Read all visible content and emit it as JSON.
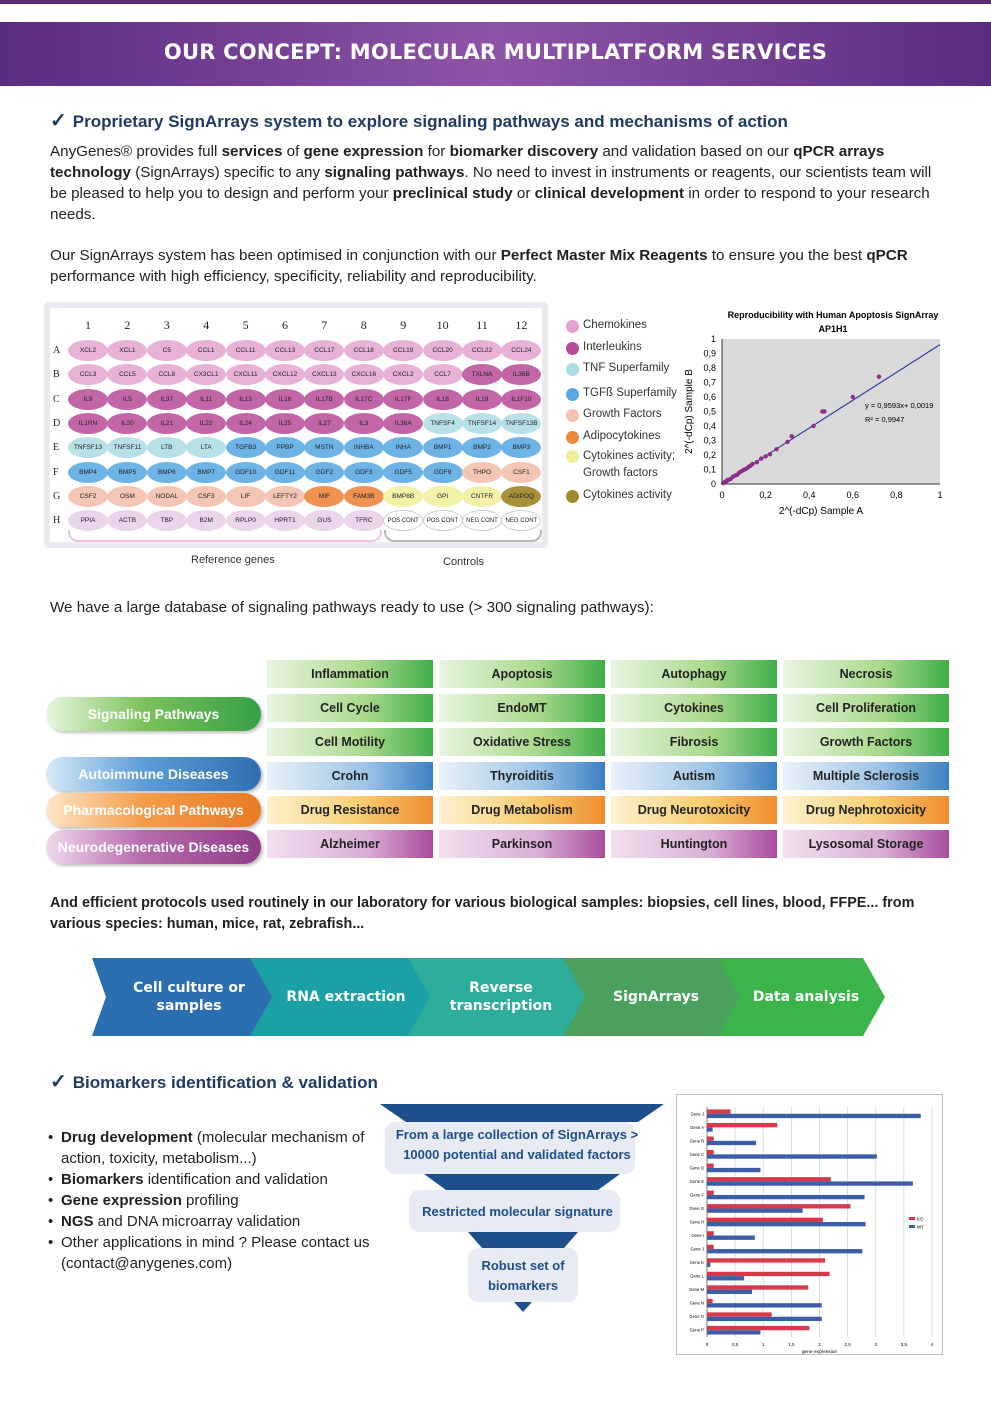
{
  "banner": {
    "title": "OUR CONCEPT: MOLECULAR MULTIPLATFORM SERVICES"
  },
  "section1": {
    "title": "Proprietary SignArrays system to explore signaling pathways and mechanisms of action",
    "para1": [
      {
        "t": "AnyGenes® provides full "
      },
      {
        "b": "services"
      },
      {
        "t": " of "
      },
      {
        "b": "gene expression"
      },
      {
        "t": " for "
      },
      {
        "b": "biomarker discovery"
      },
      {
        "t": " and validation based on our "
      },
      {
        "b": "qPCR arrays technology"
      },
      {
        "t": " (SignArrays) specific to any "
      },
      {
        "b": "signaling pathways"
      },
      {
        "t": ". No need to invest in instruments or reagents, our scientists team will be pleased to help you to design and perform your "
      },
      {
        "b": "preclinical study"
      },
      {
        "t": " or "
      },
      {
        "b": "clinical development"
      },
      {
        "t": " in order to respond to your research needs."
      }
    ],
    "para2": [
      {
        "t": "Our SignArrays system has been optimised in conjunction with our "
      },
      {
        "b": "Perfect Master Mix Reagents"
      },
      {
        "t": " to ensure you the best "
      },
      {
        "b": "qPCR"
      },
      {
        "t": " performance with high efficiency, specificity, reliability and reproducibility."
      }
    ]
  },
  "plate": {
    "columns": [
      "1",
      "2",
      "3",
      "4",
      "5",
      "6",
      "7",
      "8",
      "9",
      "10",
      "11",
      "12"
    ],
    "rows": [
      "A",
      "B",
      "C",
      "D",
      "E",
      "F",
      "G",
      "H"
    ],
    "wells": [
      [
        "XCL2",
        "XCL1",
        "C5",
        "CCL1",
        "CCL11",
        "CCL13",
        "CCL17",
        "CCL18",
        "CCL19",
        "CCL20",
        "CCL22",
        "CCL24"
      ],
      [
        "CCL3",
        "CCL5",
        "CCL8",
        "CX3CL1",
        "CXCL11",
        "CXCL12",
        "CXCL13",
        "CXCL16",
        "CXCL2",
        "CCL7",
        "TXLNA",
        "IL36B"
      ],
      [
        "IL9",
        "IL5",
        "IL37",
        "IL11",
        "IL13",
        "IL16",
        "IL17B",
        "IL17C",
        "IL17F",
        "IL18",
        "IL19",
        "IL1F10"
      ],
      [
        "IL1RN",
        "IL20",
        "IL21",
        "IL22",
        "IL24",
        "IL25",
        "IL27",
        "IL3",
        "IL36A",
        "TNFSF4",
        "TNFSF14",
        "TNFSF13B"
      ],
      [
        "TNFSF13",
        "TNFSF11",
        "LTB",
        "LTA",
        "TGFB3",
        "PPBP",
        "MSTN",
        "INHBA",
        "INHA",
        "BMP1",
        "BMP2",
        "BMP3"
      ],
      [
        "BMP4",
        "BMP5",
        "BMP6",
        "BMP7",
        "GDF10",
        "GDF11",
        "GDF2",
        "GDF3",
        "GDF5",
        "GDF9",
        "THPO",
        "CSF1"
      ],
      [
        "CSF2",
        "OSM",
        "NODAL",
        "CSF3",
        "LIF",
        "LEFTY2",
        "MIF",
        "FAM3B",
        "BMP8B",
        "GPI",
        "CNTFR",
        "ADIPOQ"
      ],
      [
        "PPIA",
        "ACTB",
        "TBP",
        "B2M",
        "RPLP0",
        "HPRT1",
        "GUS",
        "TFRC",
        "POS CONT",
        "POS CONT",
        "NEG CONT",
        "NEG CONT"
      ]
    ],
    "well_categories": [
      [
        "chemo",
        "chemo",
        "chemo",
        "chemo",
        "chemo",
        "chemo",
        "chemo",
        "chemo",
        "chemo",
        "chemo",
        "chemo",
        "chemo"
      ],
      [
        "chemo",
        "chemo",
        "chemo",
        "chemo",
        "chemo",
        "chemo",
        "chemo",
        "chemo",
        "chemo",
        "chemo",
        "inter",
        "inter"
      ],
      [
        "inter",
        "inter",
        "inter",
        "inter",
        "inter",
        "inter",
        "inter",
        "inter",
        "inter",
        "inter",
        "inter",
        "inter"
      ],
      [
        "inter",
        "inter",
        "inter",
        "inter",
        "inter",
        "inter",
        "inter",
        "inter",
        "inter",
        "tnf",
        "tnf",
        "tnf"
      ],
      [
        "tnf",
        "tnf",
        "tnf",
        "tnf",
        "tgf",
        "tgf",
        "tgf",
        "tgf",
        "tgf",
        "tgf",
        "tgf",
        "tgf"
      ],
      [
        "tgf",
        "tgf",
        "tgf",
        "tgf",
        "tgf",
        "tgf",
        "tgf",
        "tgf",
        "tgf",
        "tgf",
        "growth",
        "growth"
      ],
      [
        "growth",
        "growth",
        "growth",
        "growth",
        "growth",
        "growth",
        "adipo",
        "adipo",
        "cytoact",
        "cytoact",
        "cytoact",
        "cytoactivity"
      ],
      [
        "ref",
        "ref",
        "ref",
        "ref",
        "ref",
        "ref",
        "ref",
        "ref",
        "ctrl",
        "ctrl",
        "ctrl",
        "ctrl"
      ]
    ],
    "reference_label": "Reference genes",
    "controls_label": "Controls"
  },
  "legend": [
    {
      "label": "Chemokines",
      "color": "#e3a2cf"
    },
    {
      "label": "Interleukins",
      "color": "#b94b9b"
    },
    {
      "label": "TNF Superfamily",
      "color": "#a9dce3"
    },
    {
      "label": "TGFß Superfamily",
      "color": "#5aa8e0"
    },
    {
      "label": "Growth Factors",
      "color": "#f4c0b0"
    },
    {
      "label": "Adipocytokines",
      "color": "#ee8a3e"
    },
    {
      "label": "Cytokines activity; Growth factors",
      "color": "#f0ee9a"
    },
    {
      "label": "Cytokines activity",
      "color": "#a08b2c"
    }
  ],
  "colors": {
    "chemo": "#e8b2d6",
    "inter": "#c266a8",
    "tnf": "#b7e0e7",
    "tgf": "#6db3e6",
    "growth": "#f5c6b6",
    "adipo": "#ef9150",
    "cytoact": "#f3f1a8",
    "cytoactivity": "#a8913a",
    "ref": "#ead5ea",
    "ctrl": "#ffffff"
  },
  "chart_data": [
    {
      "type": "scatter",
      "title": "Reproducibility with Human Apoptosis SignArray",
      "subtitle": "AP1H1",
      "xlabel": "2^(-dCp) Sample A",
      "ylabel": "2^(-dCp) Sample B",
      "xlim": [
        0,
        1
      ],
      "ylim": [
        0,
        1
      ],
      "x_ticks": [
        "0",
        "0,2",
        "0,4",
        "0,6",
        "0,8",
        "1"
      ],
      "y_ticks": [
        "0",
        "0,1",
        "0,2",
        "0,3",
        "0,4",
        "0,5",
        "0,6",
        "0,7",
        "0,8",
        "0,9",
        "1"
      ],
      "equation": "y = 0,9593x+ 0,0019",
      "r2": "R² = 0,9947",
      "points": [
        [
          0.005,
          0.006
        ],
        [
          0.01,
          0.011
        ],
        [
          0.015,
          0.013
        ],
        [
          0.02,
          0.02
        ],
        [
          0.025,
          0.027
        ],
        [
          0.03,
          0.028
        ],
        [
          0.04,
          0.036
        ],
        [
          0.05,
          0.05
        ],
        [
          0.06,
          0.058
        ],
        [
          0.07,
          0.064
        ],
        [
          0.08,
          0.08
        ],
        [
          0.09,
          0.088
        ],
        [
          0.1,
          0.098
        ],
        [
          0.11,
          0.104
        ],
        [
          0.12,
          0.115
        ],
        [
          0.13,
          0.126
        ],
        [
          0.14,
          0.138
        ],
        [
          0.16,
          0.15
        ],
        [
          0.18,
          0.175
        ],
        [
          0.2,
          0.19
        ],
        [
          0.22,
          0.205
        ],
        [
          0.25,
          0.24
        ],
        [
          0.3,
          0.29
        ],
        [
          0.32,
          0.33
        ],
        [
          0.42,
          0.4
        ],
        [
          0.46,
          0.5
        ],
        [
          0.47,
          0.5
        ],
        [
          0.6,
          0.6
        ],
        [
          0.72,
          0.74
        ]
      ],
      "fit": {
        "slope": 0.9593,
        "intercept": 0.0019
      }
    },
    {
      "type": "bar",
      "orientation": "horizontal",
      "xlabel": "gene expression",
      "x_ticks": [
        "0",
        "0,5",
        "1",
        "1,5",
        "2",
        "2,5",
        "3",
        "3,5",
        "4"
      ],
      "xlim": [
        0,
        4
      ],
      "categories": [
        "Gene J",
        "Gene A",
        "Gene B",
        "Gene C",
        "Gene D",
        "Gene E",
        "Gene F",
        "Gene G",
        "Gene H",
        "Gene I",
        "Gene J",
        "Gene K",
        "Gene L",
        "Gene M",
        "Gene N",
        "Gene O",
        "Gene P"
      ],
      "series": [
        {
          "name": "KO",
          "color": "#d7394a",
          "values": [
            0.42,
            1.25,
            0.12,
            0.12,
            0.12,
            2.2,
            0.12,
            2.55,
            2.06,
            0.12,
            0.12,
            2.1,
            2.18,
            1.8,
            0.1,
            1.15,
            1.82
          ]
        },
        {
          "name": "WT",
          "color": "#3d5da8",
          "values": [
            3.8,
            0.1,
            0.87,
            3.02,
            0.95,
            3.66,
            2.8,
            1.7,
            2.82,
            0.85,
            2.76,
            0.06,
            0.66,
            0.8,
            2.04,
            2.04,
            0.95
          ]
        }
      ]
    }
  ],
  "section_db": {
    "text": "We have a large database of signaling pathways ready to use (> 300 signaling pathways):"
  },
  "pathways": {
    "categories": [
      {
        "label": "Signaling Pathways",
        "style": "green"
      },
      {
        "label": "Autoimmune Diseases",
        "style": "blue"
      },
      {
        "label": "Pharmacological Pathways",
        "style": "orange"
      },
      {
        "label": "Neurodegenerative Diseases",
        "style": "purple"
      }
    ],
    "grid": [
      [
        {
          "l": "Inflammation",
          "s": "green"
        },
        {
          "l": "Apoptosis",
          "s": "green"
        },
        {
          "l": "Autophagy",
          "s": "green"
        },
        {
          "l": "Necrosis",
          "s": "green"
        }
      ],
      [
        {
          "l": "Cell Cycle",
          "s": "green"
        },
        {
          "l": "EndoMT",
          "s": "green"
        },
        {
          "l": "Cytokines",
          "s": "green"
        },
        {
          "l": "Cell Proliferation",
          "s": "green"
        }
      ],
      [
        {
          "l": "Cell Motility",
          "s": "green"
        },
        {
          "l": "Oxidative Stress",
          "s": "green"
        },
        {
          "l": "Fibrosis",
          "s": "green"
        },
        {
          "l": "Growth Factors",
          "s": "green"
        }
      ],
      [
        {
          "l": "Crohn",
          "s": "blue"
        },
        {
          "l": "Thyroiditis",
          "s": "blue"
        },
        {
          "l": "Autism",
          "s": "blue"
        },
        {
          "l": "Multiple Sclerosis",
          "s": "blue"
        }
      ],
      [
        {
          "l": "Drug Resistance",
          "s": "orange"
        },
        {
          "l": "Drug Metabolism",
          "s": "orange"
        },
        {
          "l": "Drug Neurotoxicity",
          "s": "orange"
        },
        {
          "l": "Drug Nephrotoxicity",
          "s": "orange"
        }
      ],
      [
        {
          "l": "Alzheimer",
          "s": "purple"
        },
        {
          "l": "Parkinson",
          "s": "purple"
        },
        {
          "l": "Huntington",
          "s": "purple"
        },
        {
          "l": "Lysosomal Storage",
          "s": "purple"
        }
      ]
    ]
  },
  "protocols": {
    "text": "And efficient protocols used routinely in our laboratory for various biological samples: biopsies, cell lines, blood, FFPE... from various species: human, mice, rat, zebrafish..."
  },
  "workflow": [
    {
      "label": "Cell culture or samples",
      "color": "#2c6fb0"
    },
    {
      "label": "RNA extraction",
      "color": "#1aa0a5"
    },
    {
      "label": "Reverse transcription",
      "color": "#2eae9a"
    },
    {
      "label": "SignArrays",
      "color": "#4aa05c"
    },
    {
      "label": "Data analysis",
      "color": "#3bb54a"
    }
  ],
  "section2": {
    "title": "Biomarkers identification & validation",
    "bullets": [
      [
        {
          "b": "Drug development"
        },
        {
          "t": " (molecular mechanism of action, toxicity, metabolism...)"
        }
      ],
      [
        {
          "b": "Biomarkers"
        },
        {
          "t": " identification and validation"
        }
      ],
      [
        {
          "b": "Gene expression"
        },
        {
          "t": " profiling"
        }
      ],
      [
        {
          "b": "NGS"
        },
        {
          "t": " and DNA microarray validation"
        }
      ],
      [
        {
          "t": "Other applications in mind ? Please contact us (contact@anygenes.com)"
        }
      ]
    ],
    "funnel": {
      "step1": "From a large collection of SignArrays > 10000 potential and validated factors",
      "step2": "Restricted molecular signature",
      "step3": "Robust set of biomarkers"
    }
  }
}
